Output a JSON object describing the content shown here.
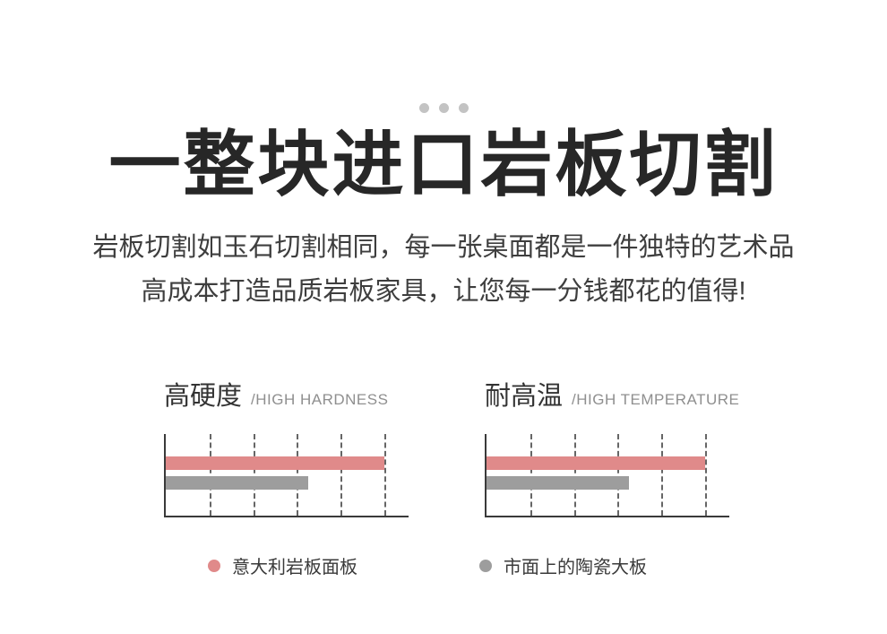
{
  "decor": {
    "dot_color": "#c3c3c3",
    "dot_count": 3
  },
  "header": {
    "title": "一整块进口岩板切割",
    "subtitle_line1": "岩板切割如玉石切割相同，每一张桌面都是一件独特的艺术品",
    "subtitle_line2": "高成本打造品质岩板家具，让您每一分钱都花的值得!"
  },
  "charts": [
    {
      "name_cn": "高硬度",
      "name_en": "/HIGH HARDNESS"
    },
    {
      "name_cn": "耐高温",
      "name_en": "/HIGH TEMPERATURE"
    }
  ],
  "chart_data": [
    {
      "type": "bar",
      "orientation": "horizontal",
      "title": "高硬度 /HIGH HARDNESS",
      "categories": [
        "意大利岩板面板",
        "市面上的陶瓷大板"
      ],
      "values": [
        100,
        65
      ],
      "xlim": [
        0,
        100
      ],
      "grid": "vertical-dashed-5-lines",
      "legend_position": "bottom",
      "series_colors": [
        "#e08a8a",
        "#9d9d9d"
      ]
    },
    {
      "type": "bar",
      "orientation": "horizontal",
      "title": "耐高温 /HIGH TEMPERATURE",
      "categories": [
        "意大利岩板面板",
        "市面上的陶瓷大板"
      ],
      "values": [
        100,
        65
      ],
      "xlim": [
        0,
        100
      ],
      "grid": "vertical-dashed-5-lines",
      "legend_position": "bottom",
      "series_colors": [
        "#e08a8a",
        "#9d9d9d"
      ]
    }
  ],
  "legend": {
    "items": [
      {
        "label": "意大利岩板面板",
        "color": "#e08a8a"
      },
      {
        "label": "市面上的陶瓷大板",
        "color": "#9d9d9d"
      }
    ]
  }
}
